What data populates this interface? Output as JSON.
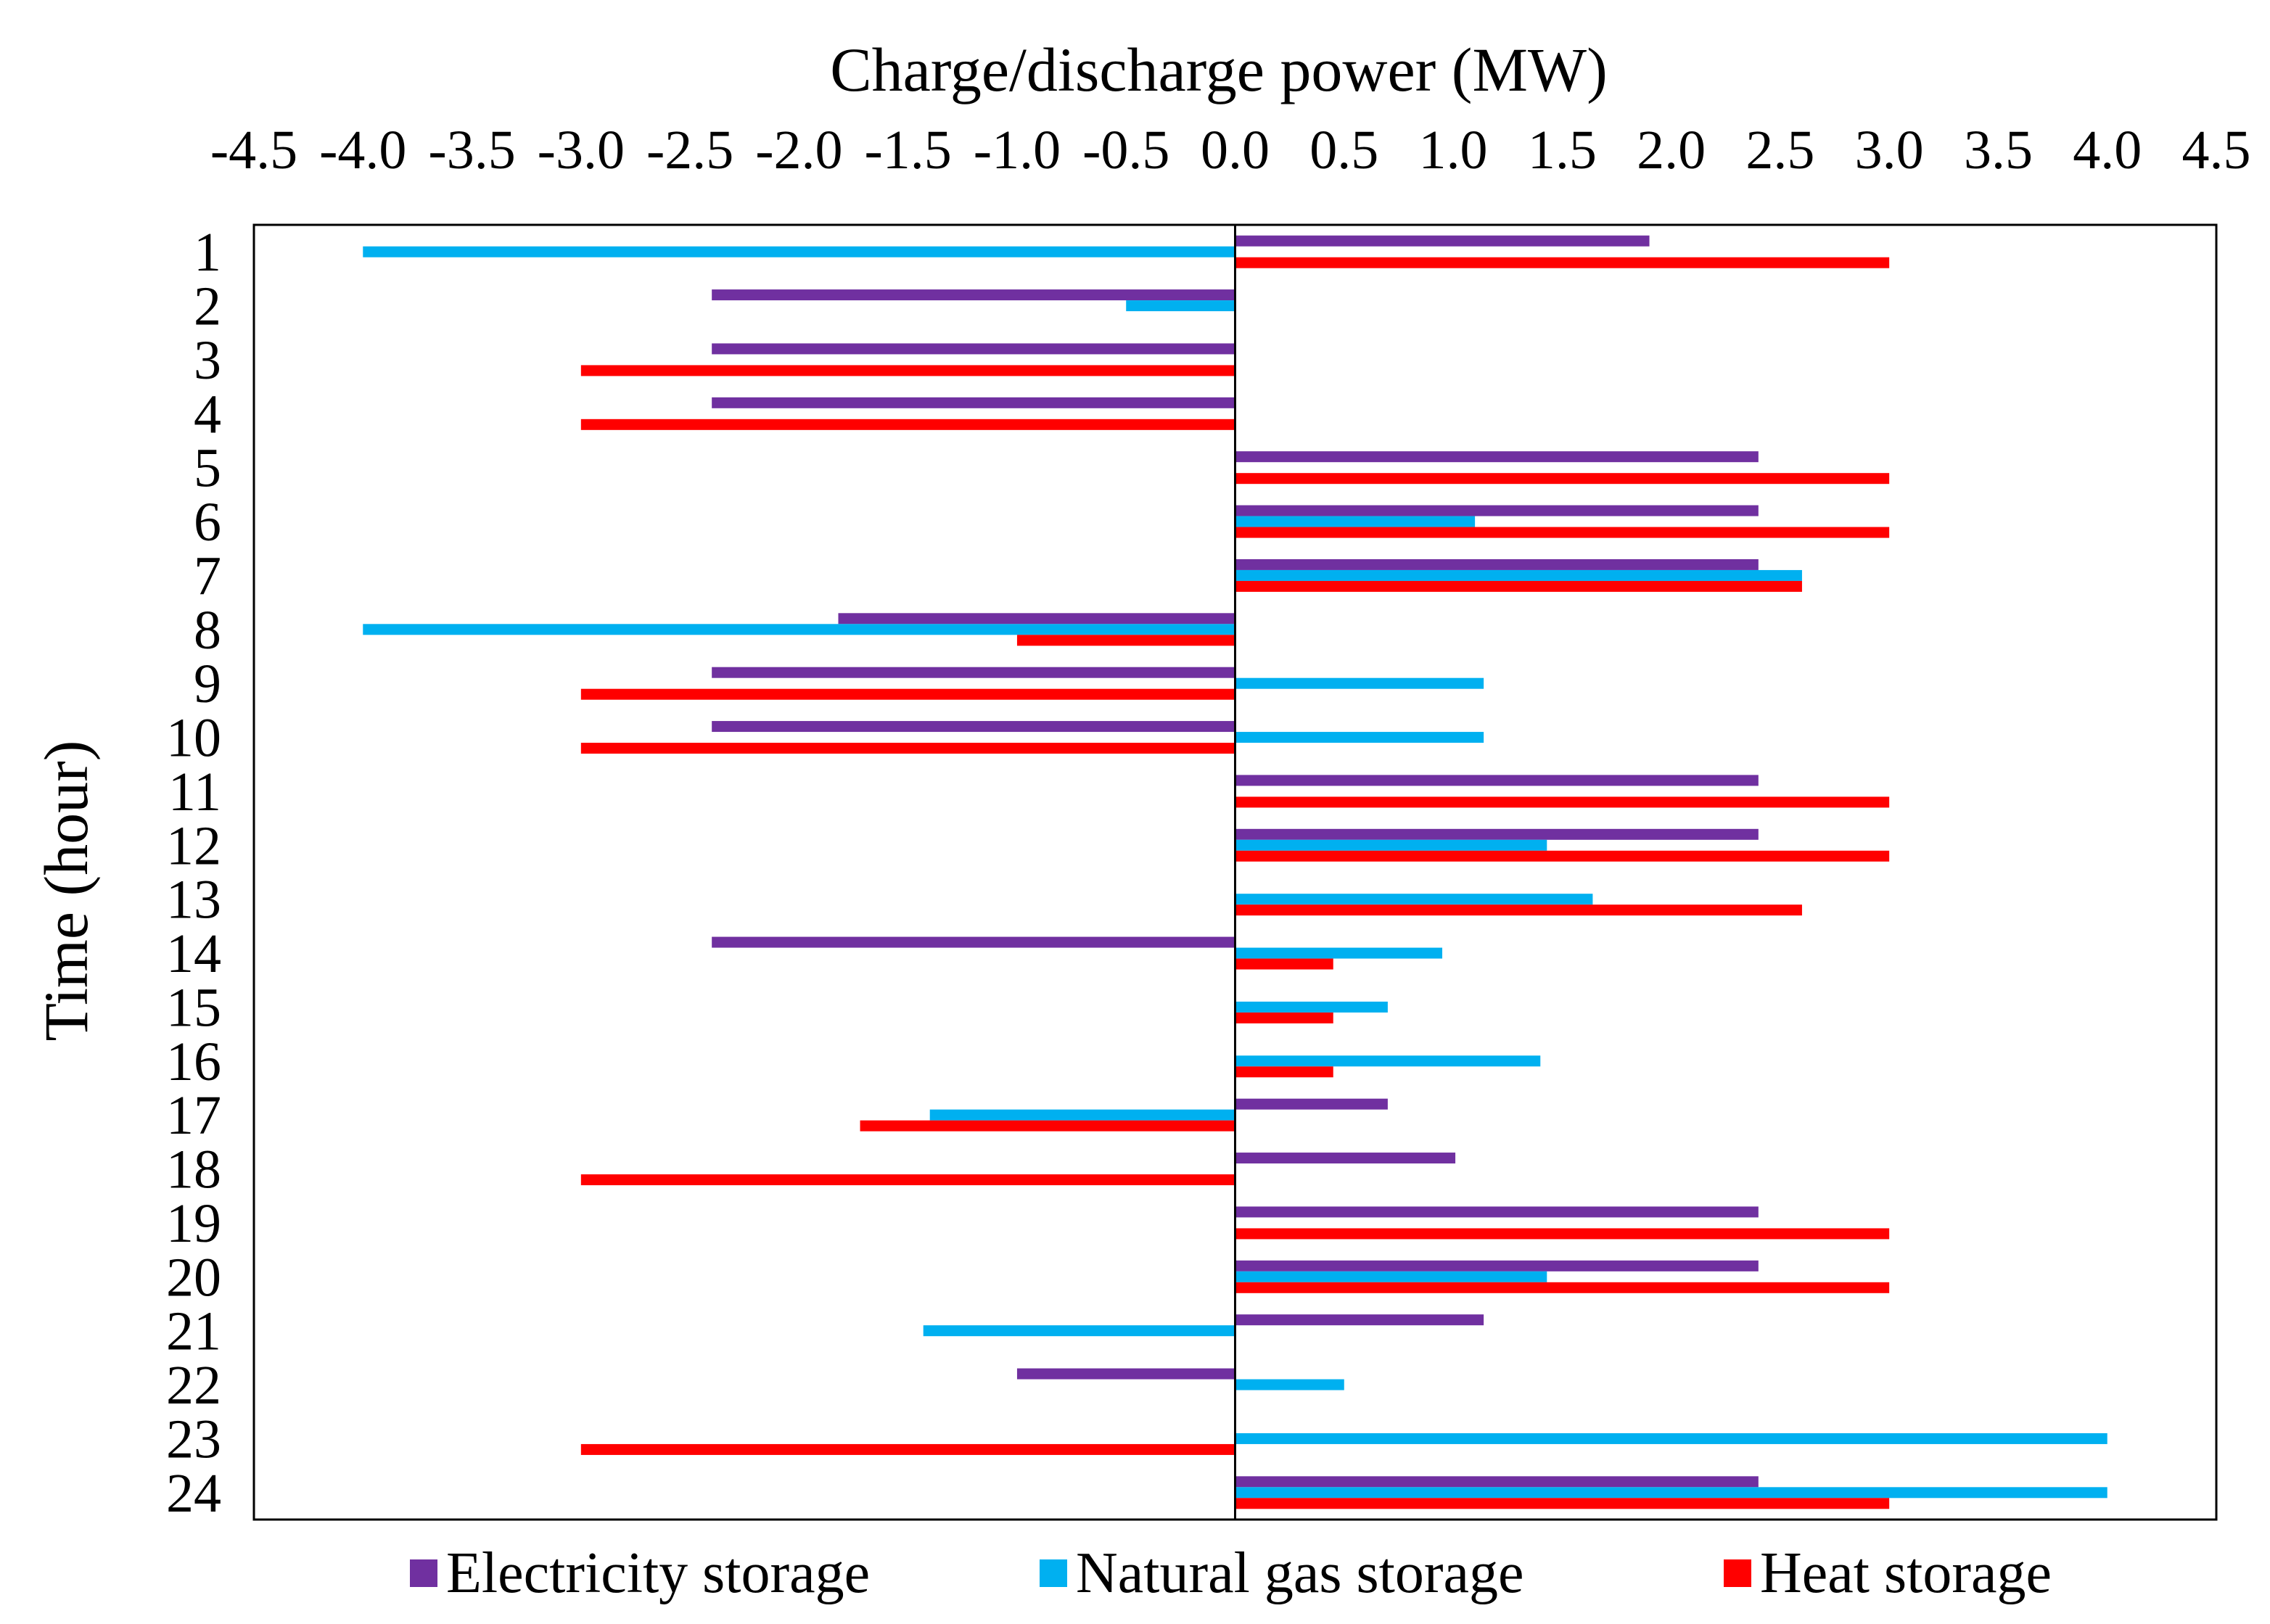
{
  "chart_data": {
    "type": "bar",
    "orientation": "horizontal",
    "title": "",
    "xlabel": "Charge/discharge power (MW)",
    "ylabel": "Time (hour)",
    "xlim": [
      -4.5,
      4.5
    ],
    "x_ticks": [
      "-4.5",
      "-4.0",
      "-3.5",
      "-3.0",
      "-2.5",
      "-2.0",
      "-1.5",
      "-1.0",
      "-0.5",
      "0.0",
      "0.5",
      "1.0",
      "1.5",
      "2.0",
      "2.5",
      "3.0",
      "3.5",
      "4.0",
      "4.5"
    ],
    "categories": [
      "1",
      "2",
      "3",
      "4",
      "5",
      "6",
      "7",
      "8",
      "9",
      "10",
      "11",
      "12",
      "13",
      "14",
      "15",
      "16",
      "17",
      "18",
      "19",
      "20",
      "21",
      "22",
      "23",
      "24"
    ],
    "legend_position": "bottom",
    "series": [
      {
        "name": "Electricity storage",
        "color": "#7030a0",
        "values": [
          1.9,
          -2.4,
          -2.4,
          -2.4,
          2.4,
          2.4,
          2.4,
          -1.82,
          -2.4,
          -2.4,
          2.4,
          2.4,
          0,
          -2.4,
          0,
          0,
          0.7,
          1.01,
          2.4,
          2.4,
          1.14,
          -1.0,
          0,
          2.4
        ]
      },
      {
        "name": "Natural gas storage",
        "color": "#00b0f0",
        "values": [
          -4.0,
          -0.5,
          0,
          0,
          0,
          1.1,
          2.6,
          -4.0,
          1.14,
          1.14,
          0,
          1.43,
          1.64,
          0.95,
          0.7,
          1.4,
          -1.4,
          0,
          0,
          1.43,
          -1.43,
          0.5,
          4.0,
          4.0
        ]
      },
      {
        "name": "Heat storage",
        "color": "#ff0000",
        "values": [
          3.0,
          0,
          -3.0,
          -3.0,
          3.0,
          3.0,
          2.6,
          -1.0,
          -3.0,
          -3.0,
          3.0,
          3.0,
          2.6,
          0.45,
          0.45,
          0.45,
          -1.72,
          -3.0,
          3.0,
          3.0,
          0,
          0,
          -3.0,
          3.0
        ]
      }
    ]
  }
}
